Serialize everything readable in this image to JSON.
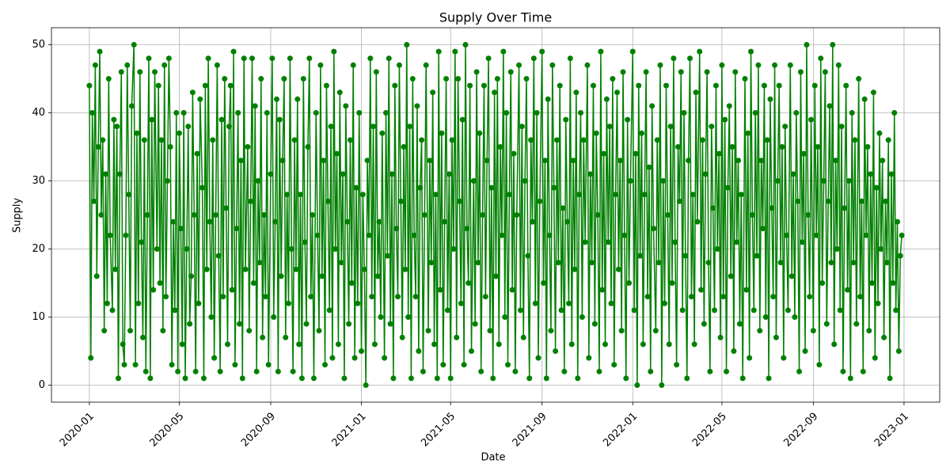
{
  "chart_data": {
    "type": "line",
    "title": "Supply Over Time",
    "xlabel": "Date",
    "ylabel": "Supply",
    "color": "#008000",
    "markers": true,
    "grid": true,
    "xlim": [
      "2019-11-11",
      "2023-02-18"
    ],
    "xticks": [
      {
        "value": "2020-01-01",
        "label": "2020-01"
      },
      {
        "value": "2020-05-01",
        "label": "2020-05"
      },
      {
        "value": "2020-09-01",
        "label": "2020-09"
      },
      {
        "value": "2021-01-01",
        "label": "2021-01"
      },
      {
        "value": "2021-05-01",
        "label": "2021-05"
      },
      {
        "value": "2021-09-01",
        "label": "2021-09"
      },
      {
        "value": "2022-01-01",
        "label": "2022-01"
      },
      {
        "value": "2022-05-01",
        "label": "2022-05"
      },
      {
        "value": "2022-09-01",
        "label": "2022-09"
      },
      {
        "value": "2023-01-01",
        "label": "2023-01"
      }
    ],
    "ylim": [
      -2.5,
      52.5
    ],
    "yticks": [
      0,
      10,
      20,
      30,
      40,
      50
    ],
    "x": [
      "2020-01-01",
      "2020-01-03",
      "2020-01-05",
      "2020-01-07",
      "2020-01-09",
      "2020-01-11",
      "2020-01-13",
      "2020-01-15",
      "2020-01-17",
      "2020-01-19",
      "2020-01-21",
      "2020-01-23",
      "2020-01-25",
      "2020-01-27",
      "2020-01-29",
      "2020-02-01",
      "2020-02-03",
      "2020-02-05",
      "2020-02-07",
      "2020-02-09",
      "2020-02-11",
      "2020-02-13",
      "2020-02-15",
      "2020-02-17",
      "2020-02-19",
      "2020-02-21",
      "2020-02-23",
      "2020-02-25",
      "2020-02-27",
      "2020-03-01",
      "2020-03-03",
      "2020-03-05",
      "2020-03-07",
      "2020-03-09",
      "2020-03-11",
      "2020-03-13",
      "2020-03-15",
      "2020-03-17",
      "2020-03-19",
      "2020-03-21",
      "2020-03-23",
      "2020-03-25",
      "2020-03-27",
      "2020-03-29",
      "2020-04-01",
      "2020-04-03",
      "2020-04-05",
      "2020-04-07",
      "2020-04-09",
      "2020-04-11",
      "2020-04-13",
      "2020-04-15",
      "2020-04-17",
      "2020-04-19",
      "2020-04-21",
      "2020-04-23",
      "2020-04-25",
      "2020-04-27",
      "2020-04-29",
      "2020-05-01",
      "2020-05-03",
      "2020-05-05",
      "2020-05-07",
      "2020-05-09",
      "2020-05-11",
      "2020-05-13",
      "2020-05-15",
      "2020-05-17",
      "2020-05-19",
      "2020-05-21",
      "2020-05-23",
      "2020-05-25",
      "2020-05-27",
      "2020-05-29",
      "2020-06-01",
      "2020-06-03",
      "2020-06-05",
      "2020-06-07",
      "2020-06-09",
      "2020-06-11",
      "2020-06-13",
      "2020-06-15",
      "2020-06-17",
      "2020-06-19",
      "2020-06-21",
      "2020-06-23",
      "2020-06-25",
      "2020-06-27",
      "2020-06-29",
      "2020-07-01",
      "2020-07-03",
      "2020-07-05",
      "2020-07-07",
      "2020-07-09",
      "2020-07-11",
      "2020-07-13",
      "2020-07-15",
      "2020-07-17",
      "2020-07-19",
      "2020-07-21",
      "2020-07-23",
      "2020-07-25",
      "2020-07-27",
      "2020-07-29",
      "2020-08-01",
      "2020-08-03",
      "2020-08-05",
      "2020-08-07",
      "2020-08-09",
      "2020-08-11",
      "2020-08-13",
      "2020-08-15",
      "2020-08-17",
      "2020-08-19",
      "2020-08-21",
      "2020-08-23",
      "2020-08-25",
      "2020-08-27",
      "2020-08-29",
      "2020-09-01",
      "2020-09-03",
      "2020-09-05",
      "2020-09-07",
      "2020-09-09",
      "2020-09-11",
      "2020-09-13",
      "2020-09-15",
      "2020-09-17",
      "2020-09-19",
      "2020-09-21",
      "2020-09-23",
      "2020-09-25",
      "2020-09-27",
      "2020-09-29",
      "2020-10-01",
      "2020-10-03",
      "2020-10-05",
      "2020-10-07",
      "2020-10-09",
      "2020-10-11",
      "2020-10-13",
      "2020-10-15",
      "2020-10-17",
      "2020-10-19",
      "2020-10-21",
      "2020-10-23",
      "2020-10-25",
      "2020-10-27",
      "2020-10-29",
      "2020-11-01",
      "2020-11-03",
      "2020-11-05",
      "2020-11-07",
      "2020-11-09",
      "2020-11-11",
      "2020-11-13",
      "2020-11-15",
      "2020-11-17",
      "2020-11-19",
      "2020-11-21",
      "2020-11-23",
      "2020-11-25",
      "2020-11-27",
      "2020-11-29",
      "2020-12-01",
      "2020-12-03",
      "2020-12-05",
      "2020-12-07",
      "2020-12-09",
      "2020-12-11",
      "2020-12-13",
      "2020-12-15",
      "2020-12-17",
      "2020-12-19",
      "2020-12-21",
      "2020-12-23",
      "2020-12-25",
      "2020-12-27",
      "2020-12-29",
      "2021-01-01",
      "2021-01-03",
      "2021-01-05",
      "2021-01-07",
      "2021-01-09",
      "2021-01-11",
      "2021-01-13",
      "2021-01-15",
      "2021-01-17",
      "2021-01-19",
      "2021-01-21",
      "2021-01-23",
      "2021-01-25",
      "2021-01-27",
      "2021-01-29",
      "2021-02-01",
      "2021-02-03",
      "2021-02-05",
      "2021-02-07",
      "2021-02-09",
      "2021-02-11",
      "2021-02-13",
      "2021-02-15",
      "2021-02-17",
      "2021-02-19",
      "2021-02-21",
      "2021-02-23",
      "2021-02-25",
      "2021-02-27",
      "2021-03-01",
      "2021-03-03",
      "2021-03-05",
      "2021-03-07",
      "2021-03-09",
      "2021-03-11",
      "2021-03-13",
      "2021-03-15",
      "2021-03-17",
      "2021-03-19",
      "2021-03-21",
      "2021-03-23",
      "2021-03-25",
      "2021-03-27",
      "2021-03-29",
      "2021-04-01",
      "2021-04-03",
      "2021-04-05",
      "2021-04-07",
      "2021-04-09",
      "2021-04-11",
      "2021-04-13",
      "2021-04-15",
      "2021-04-17",
      "2021-04-19",
      "2021-04-21",
      "2021-04-23",
      "2021-04-25",
      "2021-04-27",
      "2021-04-29",
      "2021-05-01",
      "2021-05-03",
      "2021-05-05",
      "2021-05-07",
      "2021-05-09",
      "2021-05-11",
      "2021-05-13",
      "2021-05-15",
      "2021-05-17",
      "2021-05-19",
      "2021-05-21",
      "2021-05-23",
      "2021-05-25",
      "2021-05-27",
      "2021-05-29",
      "2021-06-01",
      "2021-06-03",
      "2021-06-05",
      "2021-06-07",
      "2021-06-09",
      "2021-06-11",
      "2021-06-13",
      "2021-06-15",
      "2021-06-17",
      "2021-06-19",
      "2021-06-21",
      "2021-06-23",
      "2021-06-25",
      "2021-06-27",
      "2021-06-29",
      "2021-07-01",
      "2021-07-03",
      "2021-07-05",
      "2021-07-07",
      "2021-07-09",
      "2021-07-11",
      "2021-07-13",
      "2021-07-15",
      "2021-07-17",
      "2021-07-19",
      "2021-07-21",
      "2021-07-23",
      "2021-07-25",
      "2021-07-27",
      "2021-07-29",
      "2021-08-01",
      "2021-08-03",
      "2021-08-05",
      "2021-08-07",
      "2021-08-09",
      "2021-08-11",
      "2021-08-13",
      "2021-08-15",
      "2021-08-17",
      "2021-08-19",
      "2021-08-21",
      "2021-08-23",
      "2021-08-25",
      "2021-08-27",
      "2021-08-29",
      "2021-09-01",
      "2021-09-03",
      "2021-09-05",
      "2021-09-07",
      "2021-09-09",
      "2021-09-11",
      "2021-09-13",
      "2021-09-15",
      "2021-09-17",
      "2021-09-19",
      "2021-09-21",
      "2021-09-23",
      "2021-09-25",
      "2021-09-27",
      "2021-09-29",
      "2021-10-01",
      "2021-10-03",
      "2021-10-05",
      "2021-10-07",
      "2021-10-09",
      "2021-10-11",
      "2021-10-13",
      "2021-10-15",
      "2021-10-17",
      "2021-10-19",
      "2021-10-21",
      "2021-10-23",
      "2021-10-25",
      "2021-10-27",
      "2021-10-29",
      "2021-11-01",
      "2021-11-03",
      "2021-11-05",
      "2021-11-07",
      "2021-11-09",
      "2021-11-11",
      "2021-11-13",
      "2021-11-15",
      "2021-11-17",
      "2021-11-19",
      "2021-11-21",
      "2021-11-23",
      "2021-11-25",
      "2021-11-27",
      "2021-11-29",
      "2021-12-01",
      "2021-12-03",
      "2021-12-05",
      "2021-12-07",
      "2021-12-09",
      "2021-12-11",
      "2021-12-13",
      "2021-12-15",
      "2021-12-17",
      "2021-12-19",
      "2021-12-21",
      "2021-12-23",
      "2021-12-25",
      "2021-12-27",
      "2021-12-29",
      "2022-01-01",
      "2022-01-03",
      "2022-01-05",
      "2022-01-07",
      "2022-01-09",
      "2022-01-11",
      "2022-01-13",
      "2022-01-15",
      "2022-01-17",
      "2022-01-19",
      "2022-01-21",
      "2022-01-23",
      "2022-01-25",
      "2022-01-27",
      "2022-01-29",
      "2022-02-01",
      "2022-02-03",
      "2022-02-05",
      "2022-02-07",
      "2022-02-09",
      "2022-02-11",
      "2022-02-13",
      "2022-02-15",
      "2022-02-17",
      "2022-02-19",
      "2022-02-21",
      "2022-02-23",
      "2022-02-25",
      "2022-02-27",
      "2022-03-01",
      "2022-03-03",
      "2022-03-05",
      "2022-03-07",
      "2022-03-09",
      "2022-03-11",
      "2022-03-13",
      "2022-03-15",
      "2022-03-17",
      "2022-03-19",
      "2022-03-21",
      "2022-03-23",
      "2022-03-25",
      "2022-03-27",
      "2022-03-29",
      "2022-04-01",
      "2022-04-03",
      "2022-04-05",
      "2022-04-07",
      "2022-04-09",
      "2022-04-11",
      "2022-04-13",
      "2022-04-15",
      "2022-04-17",
      "2022-04-19",
      "2022-04-21",
      "2022-04-23",
      "2022-04-25",
      "2022-04-27",
      "2022-04-29",
      "2022-05-01",
      "2022-05-03",
      "2022-05-05",
      "2022-05-07",
      "2022-05-09",
      "2022-05-11",
      "2022-05-13",
      "2022-05-15",
      "2022-05-17",
      "2022-05-19",
      "2022-05-21",
      "2022-05-23",
      "2022-05-25",
      "2022-05-27",
      "2022-05-29",
      "2022-06-01",
      "2022-06-03",
      "2022-06-05",
      "2022-06-07",
      "2022-06-09",
      "2022-06-11",
      "2022-06-13",
      "2022-06-15",
      "2022-06-17",
      "2022-06-19",
      "2022-06-21",
      "2022-06-23",
      "2022-06-25",
      "2022-06-27",
      "2022-06-29",
      "2022-07-01",
      "2022-07-03",
      "2022-07-05",
      "2022-07-07",
      "2022-07-09",
      "2022-07-11",
      "2022-07-13",
      "2022-07-15",
      "2022-07-17",
      "2022-07-19",
      "2022-07-21",
      "2022-07-23",
      "2022-07-25",
      "2022-07-27",
      "2022-07-29",
      "2022-08-01",
      "2022-08-03",
      "2022-08-05",
      "2022-08-07",
      "2022-08-09",
      "2022-08-11",
      "2022-08-13",
      "2022-08-15",
      "2022-08-17",
      "2022-08-19",
      "2022-08-21",
      "2022-08-23",
      "2022-08-25",
      "2022-08-27",
      "2022-08-29",
      "2022-09-01",
      "2022-09-03",
      "2022-09-05",
      "2022-09-07",
      "2022-09-09",
      "2022-09-11",
      "2022-09-13",
      "2022-09-15",
      "2022-09-17",
      "2022-09-19",
      "2022-09-21",
      "2022-09-23",
      "2022-09-25",
      "2022-09-27",
      "2022-09-29",
      "2022-10-01",
      "2022-10-03",
      "2022-10-05",
      "2022-10-07",
      "2022-10-09",
      "2022-10-11",
      "2022-10-13",
      "2022-10-15",
      "2022-10-17",
      "2022-10-19",
      "2022-10-21",
      "2022-10-23",
      "2022-10-25",
      "2022-10-27",
      "2022-10-29",
      "2022-11-01",
      "2022-11-03",
      "2022-11-05",
      "2022-11-07",
      "2022-11-09",
      "2022-11-11",
      "2022-11-13",
      "2022-11-15",
      "2022-11-17",
      "2022-11-19",
      "2022-11-21",
      "2022-11-23",
      "2022-11-25",
      "2022-11-27",
      "2022-11-29",
      "2022-12-01",
      "2022-12-03",
      "2022-12-05",
      "2022-12-07",
      "2022-12-09",
      "2022-12-11",
      "2022-12-13",
      "2022-12-15",
      "2022-12-17",
      "2022-12-19",
      "2022-12-21",
      "2022-12-23",
      "2022-12-25",
      "2022-12-27",
      "2022-12-29"
    ],
    "values": [
      44,
      4,
      40,
      27,
      47,
      16,
      35,
      49,
      25,
      36,
      8,
      31,
      12,
      45,
      22,
      11,
      39,
      17,
      38,
      1,
      31,
      46,
      6,
      3,
      22,
      47,
      28,
      8,
      41,
      50,
      3,
      37,
      12,
      46,
      21,
      7,
      36,
      2,
      25,
      48,
      1,
      39,
      14,
      46,
      20,
      44,
      15,
      36,
      8,
      47,
      13,
      30,
      48,
      35,
      3,
      24,
      11,
      40,
      2,
      37,
      23,
      6,
      40,
      1,
      20,
      38,
      9,
      16,
      43,
      25,
      2,
      34,
      12,
      42,
      29,
      1,
      44,
      17,
      48,
      24,
      10,
      36,
      4,
      25,
      47,
      19,
      2,
      39,
      13,
      45,
      26,
      6,
      38,
      44,
      14,
      49,
      3,
      23,
      40,
      9,
      33,
      1,
      48,
      17,
      35,
      8,
      27,
      48,
      15,
      41,
      2,
      30,
      18,
      45,
      7,
      25,
      13,
      40,
      3,
      31,
      48,
      10,
      24,
      42,
      2,
      39,
      16,
      33,
      45,
      7,
      28,
      12,
      48,
      20,
      2,
      36,
      17,
      42,
      6,
      28,
      1,
      45,
      21,
      9,
      35,
      48,
      13,
      25,
      1,
      40,
      22,
      8,
      47,
      16,
      33,
      3,
      44,
      27,
      11,
      38,
      4,
      49,
      20,
      34,
      6,
      43,
      18,
      31,
      1,
      41,
      24,
      9,
      36,
      15,
      47,
      4,
      29,
      12,
      40,
      5,
      28,
      17,
      0,
      33,
      22,
      48,
      13,
      38,
      6,
      46,
      16,
      24,
      10,
      37,
      4,
      40,
      19,
      48,
      9,
      31,
      1,
      44,
      23,
      13,
      47,
      27,
      7,
      35,
      17,
      50,
      10,
      38,
      1,
      45,
      22,
      13,
      41,
      5,
      29,
      36,
      2,
      25,
      47,
      8,
      33,
      18,
      43,
      6,
      28,
      1,
      49,
      14,
      37,
      3,
      24,
      45,
      11,
      31,
      1,
      36,
      20,
      49,
      7,
      45,
      27,
      12,
      39,
      3,
      50,
      23,
      15,
      44,
      5,
      30,
      9,
      46,
      18,
      37,
      2,
      25,
      44,
      13,
      33,
      48,
      8,
      29,
      1,
      43,
      16,
      45,
      6,
      35,
      22,
      49,
      10,
      40,
      3,
      28,
      46,
      14,
      34,
      2,
      25,
      47,
      11,
      38,
      7,
      30,
      45,
      19,
      1,
      36,
      24,
      48,
      12,
      40,
      4,
      27,
      49,
      15,
      33,
      1,
      42,
      22,
      8,
      47,
      29,
      5,
      36,
      18,
      44,
      11,
      26,
      2,
      39,
      24,
      12,
      48,
      6,
      33,
      17,
      43,
      1,
      28,
      40,
      10,
      36,
      21,
      47,
      4,
      31,
      18,
      44,
      9,
      37,
      25,
      2,
      49,
      14,
      34,
      6,
      42,
      21,
      38,
      12,
      45,
      3,
      28,
      43,
      17,
      33,
      8,
      46,
      22,
      1,
      39,
      15,
      30,
      49,
      11,
      34,
      0,
      44,
      19,
      37,
      6,
      28,
      46,
      13,
      32,
      2,
      41,
      23,
      8,
      36,
      18,
      47,
      0,
      30,
      12,
      44,
      25,
      6,
      38,
      15,
      48,
      21,
      3,
      35,
      27,
      46,
      11,
      40,
      19,
      1,
      33,
      48,
      13,
      28,
      6,
      43,
      24,
      49,
      14,
      36,
      9,
      31,
      46,
      18,
      2,
      38,
      26,
      11,
      44,
      20,
      34,
      7,
      47,
      13,
      39,
      2,
      29,
      41,
      16,
      35,
      5,
      46,
      21,
      33,
      9,
      28,
      1,
      45,
      14,
      37,
      4,
      49,
      25,
      11,
      40,
      19,
      47,
      8,
      33,
      23,
      44,
      10,
      36,
      1,
      42,
      26,
      13,
      47,
      7,
      30,
      44,
      18,
      35,
      4,
      38,
      22,
      11,
      47,
      16,
      31,
      10,
      40,
      27,
      2,
      46,
      21,
      34,
      5,
      50,
      25,
      13,
      39,
      8,
      44,
      22,
      35,
      3,
      48,
      15,
      30,
      46,
      9,
      27,
      41,
      18,
      50,
      6,
      33,
      20,
      47,
      11,
      38,
      2,
      26,
      44,
      14,
      30,
      1,
      40,
      18,
      36,
      9,
      45,
      13,
      27,
      2,
      42,
      22,
      35,
      8,
      31,
      15,
      43,
      4,
      29,
      12,
      37,
      20,
      33,
      7,
      27,
      18,
      36,
      1,
      31,
      15,
      40,
      11,
      24,
      5,
      19,
      22
    ]
  }
}
